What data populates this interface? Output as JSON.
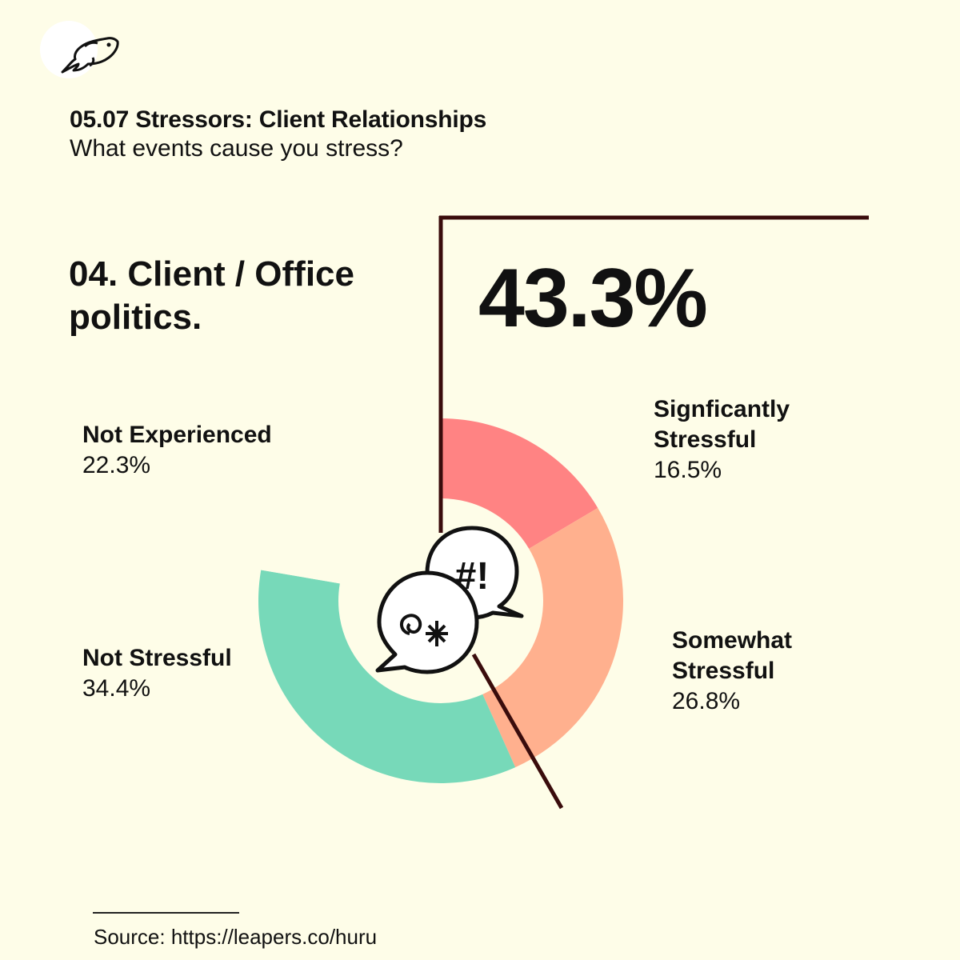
{
  "header": {
    "title": "05.07 Stressors: Client Relationships",
    "subtitle": "What events cause you stress?"
  },
  "section": {
    "title": "04. Client / Office politics.",
    "highlight_value": "43.3%"
  },
  "logo": {
    "icon": "fish-icon"
  },
  "center_icon": "speech-bubbles-icon",
  "chart_data": {
    "type": "pie",
    "categories": [
      "Signficantly Stressful",
      "Somewhat Stressful",
      "Not Stressful",
      "Not Experienced"
    ],
    "values": [
      16.5,
      26.8,
      34.4,
      22.3
    ],
    "value_labels": [
      "16.5%",
      "26.8%",
      "34.4%",
      "22.3%"
    ],
    "colors": [
      "#ff8383",
      "#ffb08e",
      "#77d9b9",
      "#fefde8"
    ],
    "donut": true,
    "start_angle_deg": 0,
    "highlight_total": 43.3
  },
  "labels": {
    "significantly": {
      "name": "Signficantly Stressful",
      "value": "16.5%"
    },
    "somewhat": {
      "name": "Somewhat Stressful",
      "value": "26.8%"
    },
    "not_experienced": {
      "name": "Not Experienced",
      "value": "22.3%"
    },
    "not_stressful": {
      "name": "Not Stressful",
      "value": "34.4%"
    }
  },
  "colors": {
    "background": "#fefde8",
    "accent_line": "#3a0c0c"
  },
  "footer": {
    "source": "Source: https://leapers.co/huru"
  }
}
